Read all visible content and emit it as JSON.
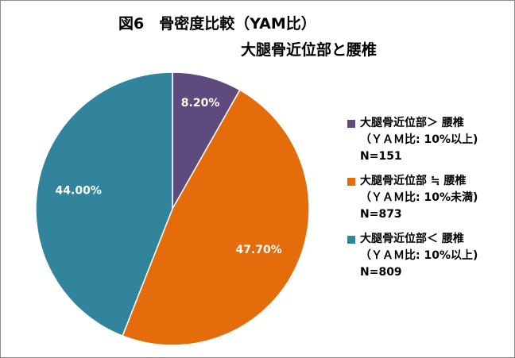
{
  "chart_data": {
    "type": "pie",
    "title": "図6　骨密度比較（YAM比）",
    "subtitle": "大腿骨近位部と腰椎",
    "start_angle_deg": 0,
    "direction": "clockwise",
    "legend_position": "right",
    "slices": [
      {
        "value": 8.2,
        "data_label": "8.20%",
        "color": "#5f4a7e",
        "legend": [
          "大腿骨近位部＞ 腰椎",
          "（ＹＡＭ比: 10%以上)",
          "N=151"
        ]
      },
      {
        "value": 47.7,
        "data_label": "47.70%",
        "color": "#e46c0a",
        "legend": [
          "大腿骨近位部 ≒ 腰椎",
          "（ＹＡＭ比: 10%未満)",
          "N=873"
        ]
      },
      {
        "value": 44.0,
        "data_label": "44.00%",
        "color": "#31849b",
        "legend": [
          "大腿骨近位部＜ 腰椎",
          "（ＹＡＭ比: 10%以上)",
          "N=809"
        ]
      }
    ]
  }
}
